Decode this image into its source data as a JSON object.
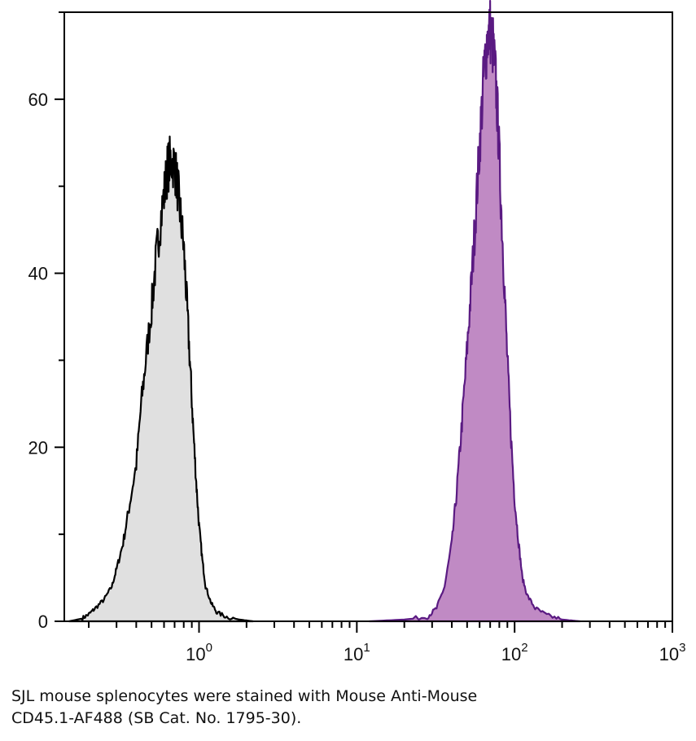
{
  "chart_data": {
    "type": "area",
    "title": "",
    "xlabel": "",
    "ylabel": "",
    "x_scale": "log",
    "xlim": [
      0.14,
      1000
    ],
    "ylim": [
      0,
      70
    ],
    "x_ticks": [
      {
        "value": 1,
        "base": "10",
        "exp": "0"
      },
      {
        "value": 10,
        "base": "10",
        "exp": "1"
      },
      {
        "value": 100,
        "base": "10",
        "exp": "2"
      },
      {
        "value": 1000,
        "base": "10",
        "exp": "3"
      }
    ],
    "y_ticks": [
      {
        "value": 0,
        "label": "0"
      },
      {
        "value": 20,
        "label": "20"
      },
      {
        "value": 40,
        "label": "40"
      },
      {
        "value": 60,
        "label": "60"
      }
    ],
    "series": [
      {
        "fill": "#e0e0e0",
        "stroke": "#000000",
        "points": [
          [
            0.15,
            0
          ],
          [
            0.18,
            0.3
          ],
          [
            0.2,
            0.8
          ],
          [
            0.22,
            1.5
          ],
          [
            0.25,
            2.5
          ],
          [
            0.28,
            4
          ],
          [
            0.3,
            6
          ],
          [
            0.33,
            9
          ],
          [
            0.36,
            13
          ],
          [
            0.4,
            18
          ],
          [
            0.43,
            25
          ],
          [
            0.46,
            30
          ],
          [
            0.5,
            36
          ],
          [
            0.53,
            41
          ],
          [
            0.56,
            45
          ],
          [
            0.6,
            49
          ],
          [
            0.63,
            52
          ],
          [
            0.66,
            53
          ],
          [
            0.7,
            52.5
          ],
          [
            0.73,
            50
          ],
          [
            0.76,
            47
          ],
          [
            0.8,
            43
          ],
          [
            0.84,
            36
          ],
          [
            0.88,
            29
          ],
          [
            0.92,
            22
          ],
          [
            0.96,
            16
          ],
          [
            1.0,
            11
          ],
          [
            1.05,
            7
          ],
          [
            1.1,
            4
          ],
          [
            1.2,
            2
          ],
          [
            1.3,
            1
          ],
          [
            1.5,
            0.5
          ],
          [
            1.8,
            0.2
          ],
          [
            2.2,
            0
          ]
        ]
      },
      {
        "fill": "#c08ac4",
        "stroke": "#5a1a82",
        "points": [
          [
            12,
            0
          ],
          [
            20,
            0.2
          ],
          [
            28,
            0.5
          ],
          [
            32,
            1.5
          ],
          [
            36,
            4
          ],
          [
            40,
            9
          ],
          [
            43,
            15
          ],
          [
            46,
            22
          ],
          [
            49,
            29
          ],
          [
            52,
            36
          ],
          [
            55,
            43
          ],
          [
            58,
            50
          ],
          [
            61,
            57
          ],
          [
            64,
            63
          ],
          [
            67,
            67
          ],
          [
            70,
            68
          ],
          [
            73,
            66
          ],
          [
            76,
            62
          ],
          [
            79,
            56
          ],
          [
            82,
            48
          ],
          [
            86,
            39
          ],
          [
            90,
            30
          ],
          [
            95,
            21
          ],
          [
            100,
            14
          ],
          [
            106,
            9
          ],
          [
            112,
            5
          ],
          [
            120,
            3
          ],
          [
            135,
            1.5
          ],
          [
            160,
            0.7
          ],
          [
            200,
            0.2
          ],
          [
            260,
            0
          ]
        ]
      }
    ]
  },
  "caption": {
    "line1": "SJL mouse splenocytes were stained with Mouse Anti-Mouse",
    "line2": "CD45.1-AF488 (SB Cat. No. 1795-30)."
  }
}
